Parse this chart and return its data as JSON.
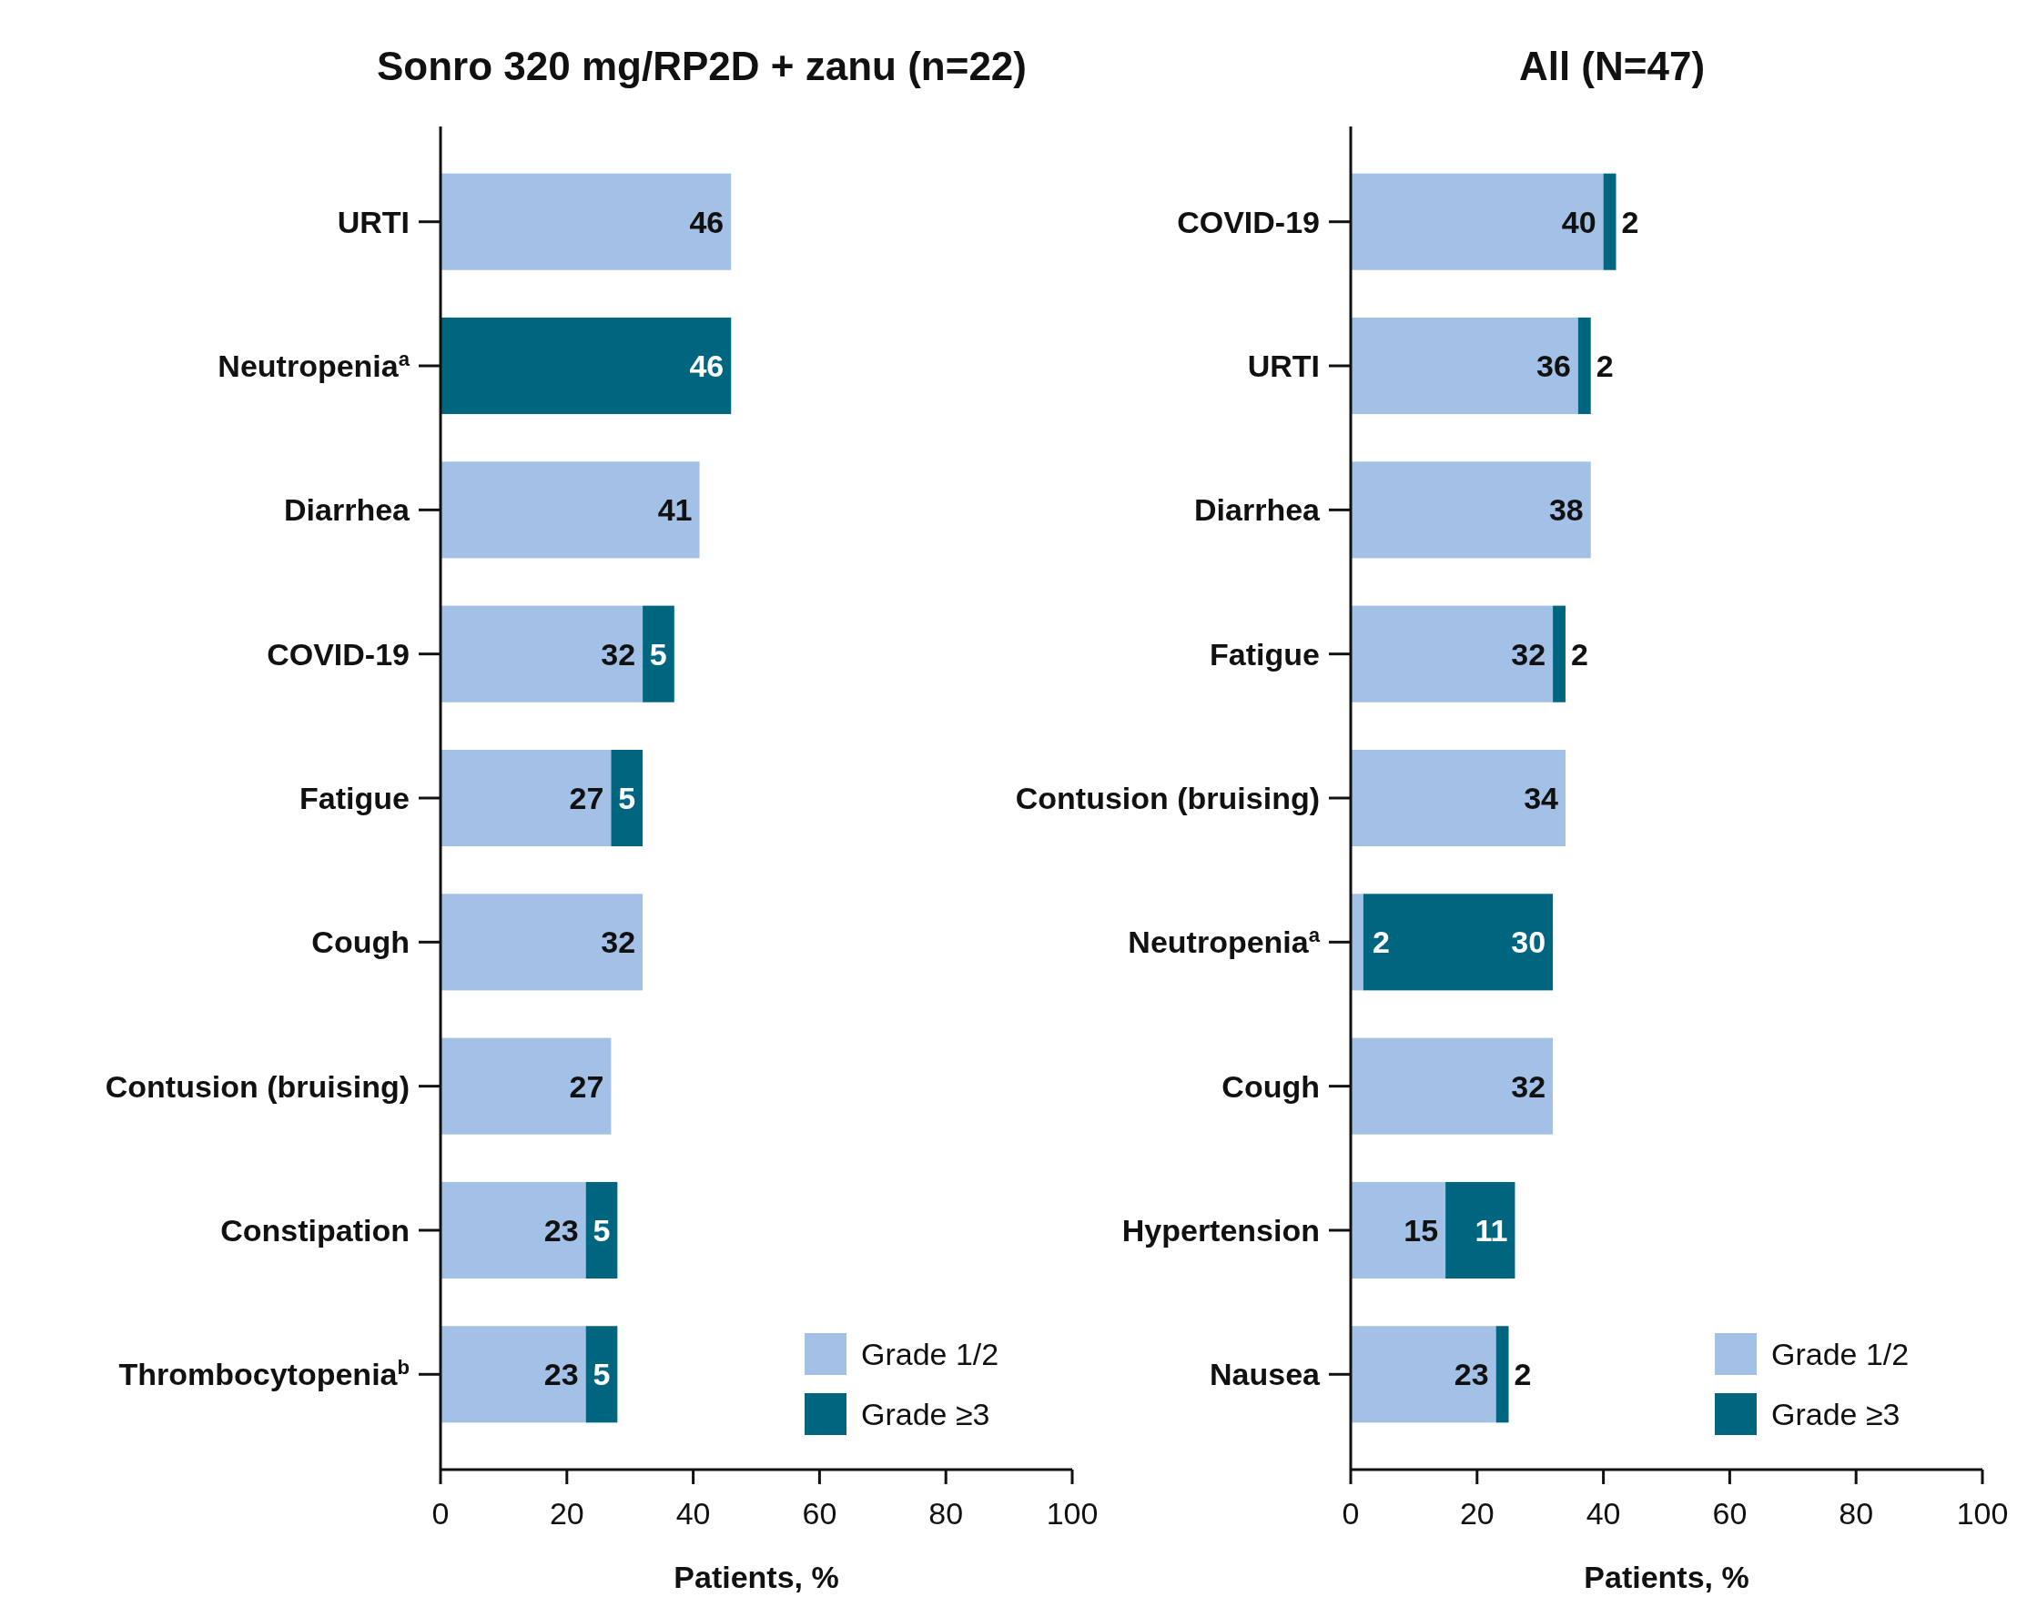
{
  "chart_data": [
    {
      "type": "bar",
      "orientation": "horizontal",
      "stacked": true,
      "title": "Sonro 320 mg/RP2D + zanu (n=22)",
      "xlabel": "Patients, %",
      "categories": [
        "URTI",
        "Neutropenia$^{a}$",
        "Diarrhea",
        "COVID-19",
        "Fatigue",
        "Cough",
        "Contusion (bruising)",
        "Constipation",
        "Thrombocytopenia$^{b}$"
      ],
      "series": [
        {
          "name": "Grade 1/2",
          "color": "#a3c1e6",
          "values": [
            46,
            0,
            41,
            32,
            27,
            32,
            27,
            23,
            23
          ],
          "value_labels": [
            "46",
            null,
            "41",
            "32",
            "27",
            "32",
            "27",
            "23",
            "23"
          ]
        },
        {
          "name": "Grade ≥3",
          "color": "#006680",
          "values": [
            0,
            46,
            0,
            5,
            5,
            0,
            0,
            5,
            5
          ],
          "value_labels": [
            null,
            "46",
            null,
            "5",
            "5",
            null,
            null,
            "5",
            "5"
          ]
        }
      ],
      "xlim": [
        0,
        100
      ],
      "xticks": [
        0,
        20,
        40,
        60,
        80,
        100
      ],
      "grid": false,
      "legend": "bottom right"
    },
    {
      "type": "bar",
      "orientation": "horizontal",
      "stacked": true,
      "title": "All (N=47)",
      "xlabel": "Patients, %",
      "categories": [
        "COVID-19",
        "URTI",
        "Diarrhea",
        "Fatigue",
        "Contusion (bruising)",
        "Neutropenia$^{a}$",
        "Cough",
        "Hypertension",
        "Nausea"
      ],
      "series": [
        {
          "name": "Grade 1/2",
          "color": "#a3c1e6",
          "values": [
            40,
            36,
            38,
            32,
            34,
            2,
            32,
            15,
            23
          ],
          "value_labels": [
            "40",
            "36",
            "38",
            "32",
            "34",
            "2",
            "32",
            "15",
            "23"
          ]
        },
        {
          "name": "Grade ≥3",
          "color": "#006680",
          "values": [
            2,
            2,
            0,
            2,
            0,
            30,
            0,
            11,
            2
          ],
          "value_labels": [
            "2",
            "2",
            null,
            "2",
            null,
            "30",
            null,
            "11",
            "2"
          ]
        }
      ],
      "xlim": [
        0,
        100
      ],
      "xticks": [
        0,
        20,
        40,
        60,
        80,
        100
      ],
      "grid": false,
      "legend": "bottom right"
    }
  ]
}
